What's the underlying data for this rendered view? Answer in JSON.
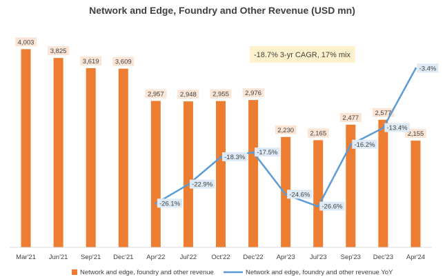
{
  "chart_data": {
    "type": "bar",
    "title": "Network and Edge, Foundry and Other Revenue (USD mn)",
    "categories": [
      "Mar'21",
      "Jun'21",
      "Sep'21",
      "Dec'21",
      "Apr'22",
      "Jul'22",
      "Oct'22",
      "Dec'22",
      "Apr'23",
      "Jul'23",
      "Sep'23",
      "Dec'23",
      "Apr'24"
    ],
    "series": [
      {
        "name": "Network and edge, foundry and other revenue",
        "type": "bar",
        "color": "#ED7D31",
        "values": [
          4003,
          3825,
          3619,
          3609,
          2957,
          2948,
          2955,
          2976,
          2230,
          2165,
          2477,
          2577,
          2155
        ],
        "labels": [
          "4,003",
          "3,825",
          "3,619",
          "3,609",
          "2,957",
          "2,948",
          "2,955",
          "2,976",
          "2,230",
          "2,165",
          "2,477",
          "2,577",
          "2,155"
        ]
      },
      {
        "name": "Network and edge, foundry and other revenue YoY",
        "type": "line",
        "color": "#5B9BD5",
        "values": [
          null,
          null,
          null,
          null,
          -26.1,
          -22.9,
          -18.3,
          -17.5,
          -24.6,
          -26.6,
          -16.2,
          -13.4,
          -3.4
        ],
        "labels": [
          "",
          "",
          "",
          "",
          "-26.1%",
          "-22.9%",
          "-18.3%",
          "-17.5%",
          "-24.6%",
          "-26.6%",
          "-16.2%",
          "-13.4%",
          "-3.4%"
        ]
      }
    ],
    "annotation": "-18.7% 3-yr CAGR, 17% mix",
    "ylim": [
      0,
      4300
    ],
    "ylim_secondary": [
      -30,
      0
    ],
    "legend": "bottom",
    "grid": false,
    "colors": {
      "bar_label_bg": "#FBE5D6",
      "yoy_label_bg": "#DEEBF7",
      "annotation_bg": "#FFF2CC"
    }
  }
}
